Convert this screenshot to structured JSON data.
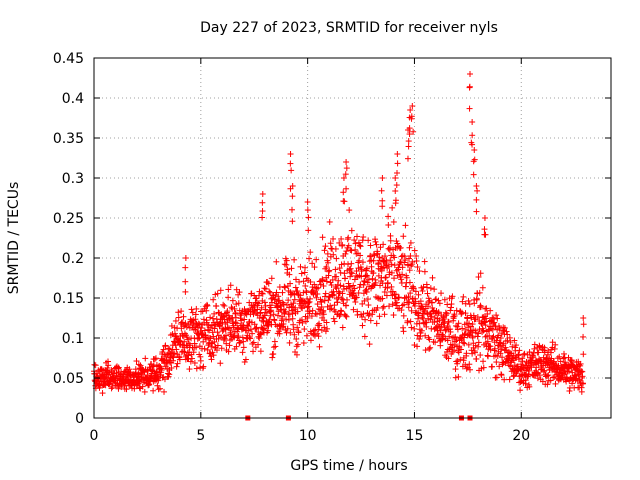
{
  "chart_data": {
    "type": "scatter",
    "title": "Day 227 of 2023, SRMTID for receiver nyls",
    "xlabel": "GPS time / hours",
    "ylabel": "SRMTID / TECUs",
    "xlim": [
      0,
      24.2
    ],
    "ylim": [
      0,
      0.45
    ],
    "x_ticks": [
      0,
      5,
      10,
      15,
      20
    ],
    "x_tick_labels": [
      "0",
      "5",
      "10",
      "15",
      "20"
    ],
    "y_ticks": [
      0,
      0.05,
      0.1,
      0.15,
      0.2,
      0.25,
      0.3,
      0.35,
      0.4,
      0.45
    ],
    "y_tick_labels": [
      "0",
      "0.05",
      "0.1",
      "0.15",
      "0.2",
      "0.25",
      "0.3",
      "0.35",
      "0.4",
      "0.45"
    ],
    "grid": true,
    "marker": "plus",
    "color": "#ff0000",
    "profile_hours": [
      0,
      1,
      2,
      3,
      4,
      5,
      6,
      7,
      8,
      9,
      10,
      11,
      12,
      13,
      14,
      15,
      16,
      17,
      18,
      19,
      20,
      21,
      22,
      23
    ],
    "profile_center": [
      0.05,
      0.05,
      0.05,
      0.055,
      0.1,
      0.1,
      0.12,
      0.12,
      0.13,
      0.14,
      0.14,
      0.17,
      0.18,
      0.17,
      0.18,
      0.15,
      0.12,
      0.1,
      0.12,
      0.09,
      0.06,
      0.07,
      0.06,
      0.05
    ],
    "profile_spread": [
      0.015,
      0.015,
      0.015,
      0.02,
      0.035,
      0.035,
      0.035,
      0.04,
      0.045,
      0.05,
      0.05,
      0.055,
      0.06,
      0.06,
      0.065,
      0.05,
      0.04,
      0.04,
      0.05,
      0.035,
      0.02,
      0.025,
      0.02,
      0.02
    ],
    "points_per_hour": 90,
    "data_end_hour": 22.9,
    "peaks": [
      {
        "x": 4.3,
        "y": 0.2
      },
      {
        "x": 7.9,
        "y": 0.28
      },
      {
        "x": 9.2,
        "y": 0.33
      },
      {
        "x": 9.3,
        "y": 0.29
      },
      {
        "x": 10.0,
        "y": 0.27
      },
      {
        "x": 11.7,
        "y": 0.3
      },
      {
        "x": 11.8,
        "y": 0.32
      },
      {
        "x": 13.5,
        "y": 0.3
      },
      {
        "x": 14.1,
        "y": 0.3
      },
      {
        "x": 14.2,
        "y": 0.33
      },
      {
        "x": 14.8,
        "y": 0.385
      },
      {
        "x": 14.9,
        "y": 0.39
      },
      {
        "x": 14.7,
        "y": 0.36
      },
      {
        "x": 17.6,
        "y": 0.43
      },
      {
        "x": 17.7,
        "y": 0.37
      },
      {
        "x": 17.8,
        "y": 0.335
      },
      {
        "x": 17.9,
        "y": 0.29
      },
      {
        "x": 18.3,
        "y": 0.25
      },
      {
        "x": 22.9,
        "y": 0.125
      }
    ],
    "zero_markers": [
      7.2,
      9.1,
      17.2,
      17.6
    ]
  }
}
